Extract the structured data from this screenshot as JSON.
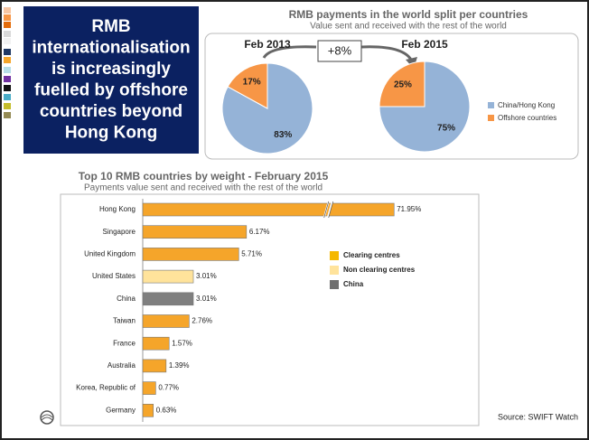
{
  "headline": [
    "RMB",
    "internationalisation",
    "is increasingly",
    "fuelled by offshore",
    "countries beyond",
    "Hong Kong"
  ],
  "source": "Source: SWIFT Watch",
  "chart_data": [
    {
      "type": "pie",
      "title": "RMB payments in the world split per countries",
      "subtitle": "Value sent and received with the rest of the world",
      "annotation": "+8%",
      "categories": [
        "China/Hong Kong",
        "Offshore countries"
      ],
      "colors": [
        "#95b3d7",
        "#f79646"
      ],
      "series": [
        {
          "name": "Feb 2013",
          "values": [
            83,
            17
          ],
          "value_labels": [
            "83%",
            "17%"
          ]
        },
        {
          "name": "Feb 2015",
          "values": [
            75,
            25
          ],
          "value_labels": [
            "75%",
            "25%"
          ]
        }
      ]
    },
    {
      "type": "hbar",
      "title": "Top 10 RMB countries by weight - February 2015",
      "subtitle": "Payments value sent and received with the rest of the world",
      "categories": [
        "Hong Kong",
        "Singapore",
        "United Kingdom",
        "United States",
        "China",
        "Taiwan",
        "France",
        "Australia",
        "Korea, Republic of",
        "Germany"
      ],
      "values": [
        71.95,
        6.17,
        5.71,
        3.01,
        3.01,
        2.76,
        1.57,
        1.39,
        0.77,
        0.63
      ],
      "value_labels": [
        "71.95%",
        "6.17%",
        "5.71%",
        "3.01%",
        "3.01%",
        "2.76%",
        "1.57%",
        "1.39%",
        "0.77%",
        "0.63%"
      ],
      "colors": [
        "#f5a52a",
        "#f5a52a",
        "#f5a52a",
        "#ffe39b",
        "#7f7f7f",
        "#f5a52a",
        "#f5a52a",
        "#f5a52a",
        "#f5a52a",
        "#f5a52a"
      ],
      "xlim": [
        0,
        75
      ],
      "axis_break": [
        11,
        68
      ],
      "legend": [
        {
          "name": "Clearing centres",
          "color": "#f5b800"
        },
        {
          "name": "Non clearing centres",
          "color": "#ffe39b"
        },
        {
          "name": "China",
          "color": "#6f6f6f"
        }
      ]
    }
  ]
}
